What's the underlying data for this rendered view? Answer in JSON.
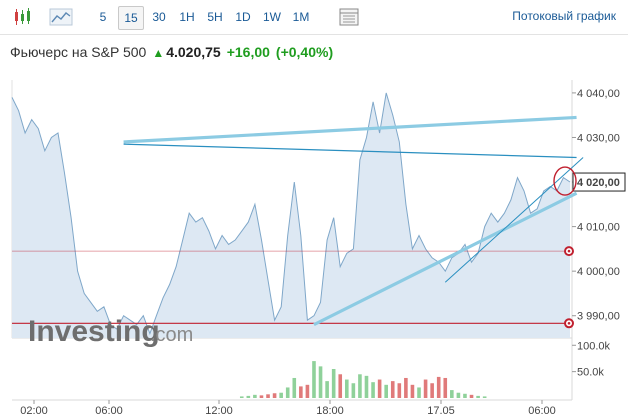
{
  "toolbar": {
    "intervals": [
      "5",
      "15",
      "30",
      "1H",
      "5H",
      "1D",
      "1W",
      "1M"
    ],
    "active_interval": "15",
    "streaming_label": "Потоковый график",
    "icons": [
      "candlestick-icon",
      "area-chart-icon",
      "table-icon"
    ]
  },
  "header": {
    "name": "Фьючерс на S&P 500",
    "price": "4.020,75",
    "change": "+16,00",
    "change_pct": "(+0,40%)",
    "direction": "up"
  },
  "logo": {
    "text": "Investing",
    "suffix": ".com"
  },
  "colors": {
    "line": "#7fa7c9",
    "fill": "#dde8f3",
    "trend_light": "#8ccbe3",
    "trend_dark": "#2a8fc0",
    "level_line": "#c0202f",
    "vol_up": "#8fd19a",
    "vol_down": "#e07a7a",
    "up_text": "#1f9d1f"
  },
  "chart_data": {
    "type": "area",
    "ylim": [
      3985,
      4042
    ],
    "yticks": [
      3990,
      4000,
      4010,
      4020,
      4030,
      4040
    ],
    "ytick_labels": [
      "3 990,00",
      "4 000,00",
      "4 010,00",
      "4 020,00",
      "4 030,00",
      "4 040,00"
    ],
    "xtick_labels": [
      "02:00",
      "06:00",
      "12:00",
      "18:00",
      "17.05",
      "06:00"
    ],
    "last_price_label": "4 020,00",
    "current_price": 4020,
    "horizontal_levels": [
      4004.5,
      3988.3
    ],
    "price_series": [
      4039,
      4036,
      4031,
      4034,
      4032,
      4027,
      4030,
      4031,
      4022,
      4012,
      4000,
      3995,
      3993,
      3991,
      3992,
      3988,
      3987,
      3990,
      3989,
      3988,
      3990,
      3986,
      3990,
      3994,
      3997,
      4001,
      4007,
      4013,
      4011,
      4012,
      4009,
      4005,
      4008,
      4006,
      4007,
      4009,
      4011,
      4015,
      4007,
      3998,
      3989,
      3992,
      4008,
      4020,
      4008,
      3989,
      3990,
      3993,
      4007,
      4012,
      4001,
      4004,
      4005,
      4025,
      4030,
      4038,
      4031,
      4040,
      4035,
      4029,
      4015,
      4005,
      4008,
      4005,
      4003,
      4002,
      4000,
      4003,
      4004,
      4006,
      4002,
      4004,
      4010,
      4013,
      4011,
      4013,
      4016,
      4021,
      4018,
      4013,
      4014,
      4018,
      4019,
      4018,
      4021,
      4020
    ],
    "volume_series": [
      0,
      0,
      0,
      0,
      0,
      0,
      0,
      0,
      0,
      0,
      0,
      0,
      0,
      0,
      0,
      0,
      0,
      0,
      0,
      0,
      0,
      0,
      0,
      0,
      0,
      0,
      0,
      0,
      0,
      0,
      0,
      0,
      0,
      0,
      0,
      3,
      4,
      6,
      5,
      7,
      9,
      10,
      20,
      38,
      22,
      25,
      70,
      60,
      32,
      55,
      45,
      35,
      28,
      45,
      42,
      30,
      35,
      25,
      32,
      28,
      38,
      25,
      20,
      35,
      28,
      40,
      38,
      15,
      10,
      8,
      6,
      4,
      3,
      0,
      0,
      0,
      0,
      0,
      0,
      0,
      0,
      0,
      0,
      0,
      0,
      0
    ],
    "volume_ticks": [
      "100.0k",
      "50.0k"
    ],
    "volume_tick_values": [
      100000,
      50000
    ],
    "volume_scale": 1000
  }
}
